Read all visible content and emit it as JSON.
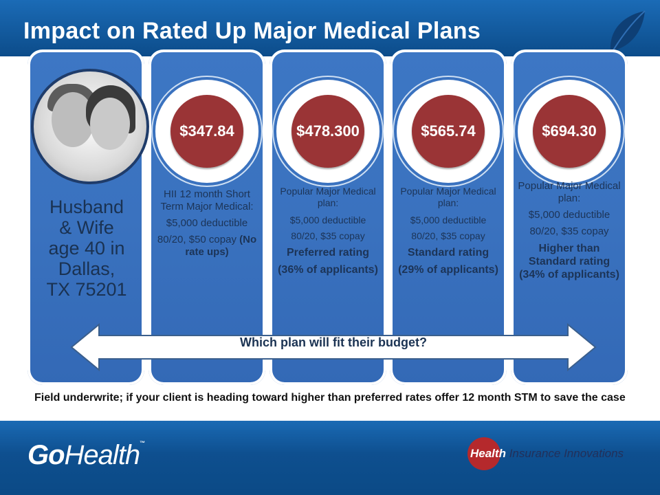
{
  "title": "Impact on Rated Up Major Medical Plans",
  "profile": {
    "lines": [
      "Husband",
      "& Wife",
      "age 40 in",
      "Dallas,",
      "TX 75201"
    ]
  },
  "plans": [
    {
      "price": "$347.84",
      "line1": "HII 12 month Short Term Major Medical:",
      "line2": "$5,000 deductible",
      "line3": "80/20, $50 copay",
      "line3_bold": "(No rate ups)"
    },
    {
      "price": "$478.300",
      "line1": "Popular Major Medical plan:",
      "line2": "$5,000 deductible",
      "line3": "80/20, $35 copay",
      "rating": "Preferred rating",
      "share": "(36% of applicants)"
    },
    {
      "price": "$565.74",
      "line1": "Popular Major Medical plan:",
      "line2": "$5,000 deductible",
      "line3": "80/20, $35 copay",
      "rating": "Standard rating",
      "share": "(29% of applicants)"
    },
    {
      "price": "$694.30",
      "line1": "Popular Major Medical plan:",
      "line2": "$5,000 deductible",
      "line3": "80/20, $35 copay",
      "rating": "Higher than Standard rating (34% of applicants)"
    }
  ],
  "arrow_label": "Which plan will fit their budget?",
  "note": "Field underwrite; if your client is heading toward higher than preferred rates offer 12 month STM to save the case",
  "footer": {
    "logo_left_go": "Go",
    "logo_left_health": "Health",
    "logo_left_tm": "™",
    "logo_right_health": "Health",
    "logo_right_rest": " Insurance Innovations"
  },
  "colors": {
    "column_blue": "#3a72bf",
    "price_red": "#9a3436",
    "header_blue": "#0c4c8a"
  }
}
